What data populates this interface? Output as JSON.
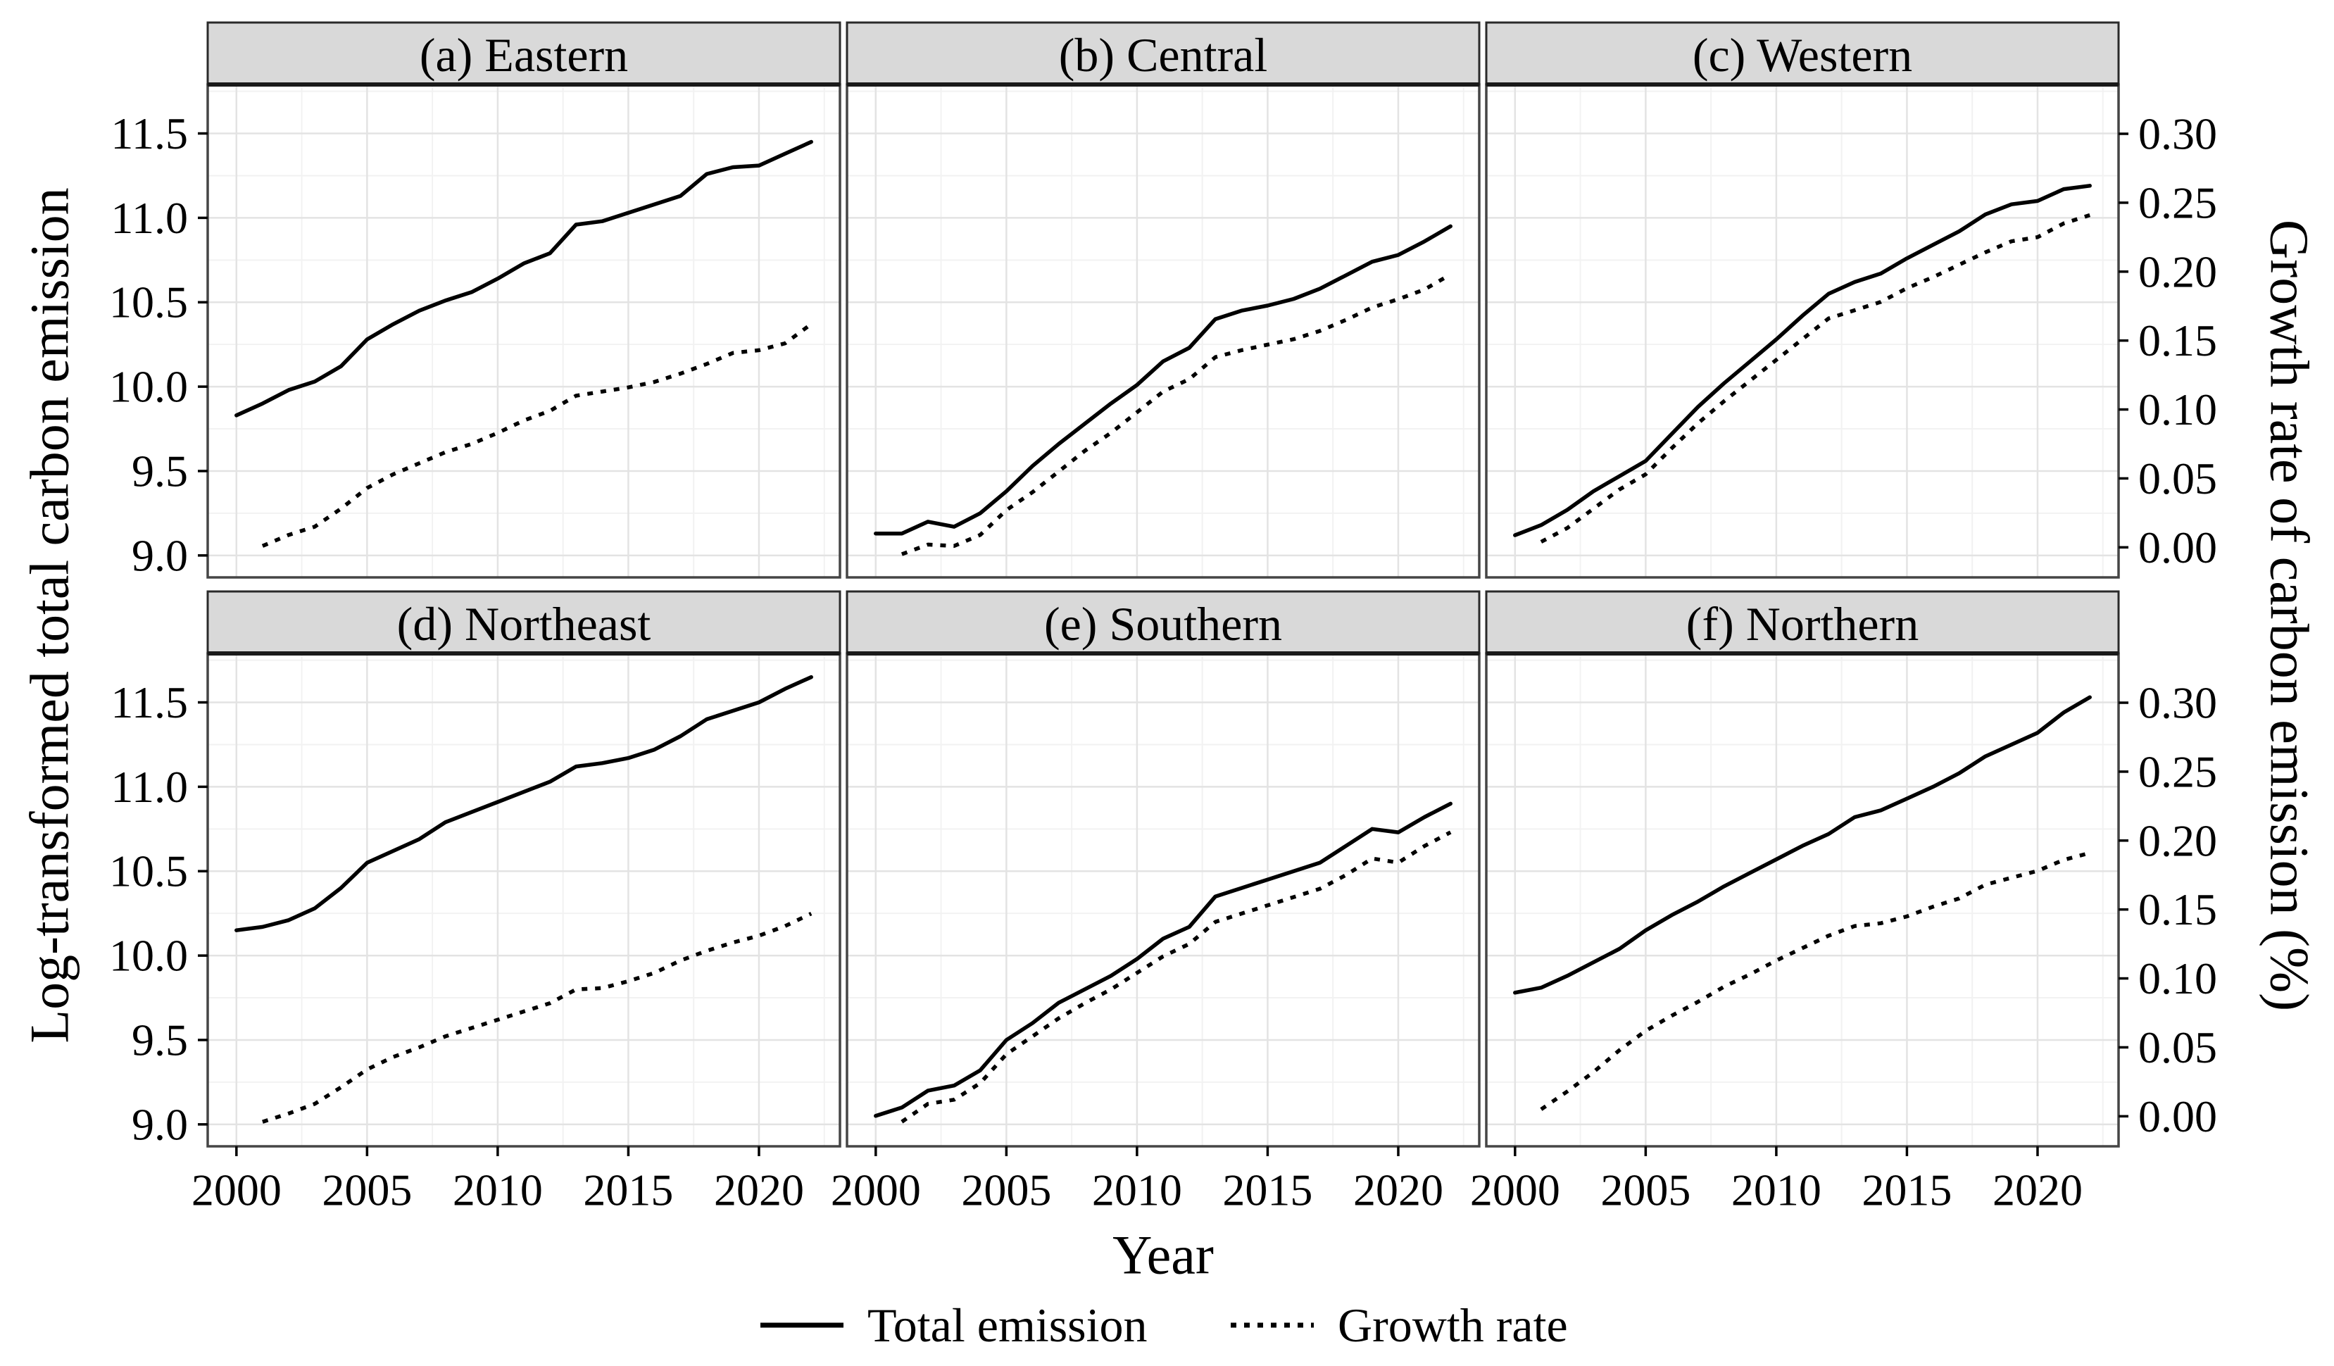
{
  "chart_data": {
    "type": "line",
    "title": "",
    "xlabel": "Year",
    "ylabel_left": "Log-transformed total carbon emission",
    "ylabel_right": "Growth rate of carbon emission (%)",
    "x": [
      2000,
      2001,
      2002,
      2003,
      2004,
      2005,
      2006,
      2007,
      2008,
      2009,
      2010,
      2011,
      2012,
      2013,
      2014,
      2015,
      2016,
      2017,
      2018,
      2019,
      2020,
      2021,
      2022
    ],
    "x_ticks": [
      2000,
      2005,
      2010,
      2015,
      2020
    ],
    "x_minor_breaks": [
      2002.5,
      2007.5,
      2012.5,
      2017.5,
      2022.5
    ],
    "x_range": [
      1998.9,
      2023.1
    ],
    "left_ticks": [
      "9.0",
      "9.5",
      "10.0",
      "10.5",
      "11.0",
      "11.5"
    ],
    "left_range": [
      8.87,
      11.79
    ],
    "y_minor_breaks": [
      9.25,
      9.75,
      10.25,
      10.75,
      11.25,
      11.75
    ],
    "right_ticks": [
      "0.00",
      "0.05",
      "0.10",
      "0.15",
      "0.20",
      "0.25",
      "0.30"
    ],
    "right_transform": {
      "offset": 9.048,
      "scale": 8.1667
    },
    "grid": true,
    "legend_position": "bottom",
    "legend": [
      {
        "name": "Total emission",
        "linetype": "solid"
      },
      {
        "name": "Growth rate",
        "linetype": "dotted"
      }
    ],
    "facets": [
      {
        "id": "a",
        "title": "(a) Eastern",
        "total_emission": [
          9.83,
          9.9,
          9.98,
          10.03,
          10.12,
          10.28,
          10.37,
          10.45,
          10.51,
          10.56,
          10.64,
          10.73,
          10.79,
          10.96,
          10.98,
          11.03,
          11.08,
          11.13,
          11.26,
          11.3,
          11.31,
          11.38,
          11.45
        ],
        "growth_rate": [
          null,
          0.001,
          0.009,
          0.015,
          0.028,
          0.043,
          0.053,
          0.061,
          0.069,
          0.075,
          0.083,
          0.092,
          0.099,
          0.11,
          0.113,
          0.116,
          0.12,
          0.126,
          0.133,
          0.141,
          0.143,
          0.148,
          0.162
        ]
      },
      {
        "id": "b",
        "title": "(b) Central",
        "total_emission": [
          9.13,
          9.13,
          9.2,
          9.17,
          9.25,
          9.38,
          9.53,
          9.66,
          9.78,
          9.9,
          10.01,
          10.15,
          10.23,
          10.4,
          10.45,
          10.48,
          10.52,
          10.58,
          10.66,
          10.74,
          10.78,
          10.86,
          10.95
        ],
        "growth_rate": [
          null,
          -0.005,
          0.002,
          0.001,
          0.009,
          0.027,
          0.04,
          0.055,
          0.07,
          0.083,
          0.098,
          0.113,
          0.122,
          0.138,
          0.143,
          0.147,
          0.151,
          0.157,
          0.165,
          0.174,
          0.18,
          0.187,
          0.198
        ]
      },
      {
        "id": "c",
        "title": "(c) Western",
        "total_emission": [
          9.12,
          9.18,
          9.27,
          9.38,
          9.47,
          9.56,
          9.72,
          9.88,
          10.02,
          10.15,
          10.28,
          10.42,
          10.55,
          10.62,
          10.67,
          10.76,
          10.84,
          10.92,
          11.02,
          11.08,
          11.1,
          11.17,
          11.19
        ],
        "growth_rate": [
          null,
          0.004,
          0.014,
          0.028,
          0.042,
          0.053,
          0.072,
          0.09,
          0.106,
          0.121,
          0.136,
          0.151,
          0.166,
          0.172,
          0.178,
          0.188,
          0.196,
          0.205,
          0.214,
          0.222,
          0.225,
          0.235,
          0.241
        ]
      },
      {
        "id": "d",
        "title": "(d) Northeast",
        "total_emission": [
          10.15,
          10.17,
          10.21,
          10.28,
          10.4,
          10.55,
          10.62,
          10.69,
          10.79,
          10.85,
          10.91,
          10.97,
          11.03,
          11.12,
          11.14,
          11.17,
          11.22,
          11.3,
          11.4,
          11.45,
          11.5,
          11.58,
          11.65
        ],
        "growth_rate": [
          null,
          -0.004,
          0.002,
          0.009,
          0.021,
          0.034,
          0.043,
          0.05,
          0.058,
          0.064,
          0.07,
          0.076,
          0.082,
          0.092,
          0.093,
          0.098,
          0.104,
          0.113,
          0.12,
          0.126,
          0.131,
          0.138,
          0.147
        ]
      },
      {
        "id": "e",
        "title": "(e) Southern",
        "total_emission": [
          9.05,
          9.1,
          9.2,
          9.23,
          9.32,
          9.5,
          9.6,
          9.72,
          9.8,
          9.88,
          9.98,
          10.1,
          10.17,
          10.35,
          10.4,
          10.45,
          10.5,
          10.55,
          10.65,
          10.75,
          10.73,
          10.82,
          10.9
        ],
        "growth_rate": [
          null,
          -0.004,
          0.009,
          0.012,
          0.024,
          0.045,
          0.058,
          0.071,
          0.082,
          0.092,
          0.104,
          0.116,
          0.125,
          0.141,
          0.147,
          0.153,
          0.159,
          0.165,
          0.175,
          0.187,
          0.184,
          0.196,
          0.206
        ]
      },
      {
        "id": "f",
        "title": "(f) Northern",
        "total_emission": [
          9.78,
          9.81,
          9.88,
          9.96,
          10.04,
          10.15,
          10.24,
          10.32,
          10.41,
          10.49,
          10.57,
          10.65,
          10.72,
          10.82,
          10.86,
          10.93,
          11.0,
          11.08,
          11.18,
          11.25,
          11.32,
          11.44,
          11.53
        ],
        "growth_rate": [
          null,
          0.005,
          0.018,
          0.032,
          0.048,
          0.062,
          0.073,
          0.083,
          0.094,
          0.103,
          0.113,
          0.122,
          0.131,
          0.138,
          0.14,
          0.145,
          0.152,
          0.158,
          0.168,
          0.173,
          0.178,
          0.186,
          0.191
        ]
      }
    ],
    "style": {
      "line_color": "#000000",
      "strip_fill": "#d9d9d9",
      "strip_border": "#2a2a2a",
      "panel_border": "#454545",
      "grid_major": "#e3e3e3",
      "grid_minor": "#f2f2f2",
      "background": "#ffffff",
      "tick_color": "#000000"
    }
  }
}
